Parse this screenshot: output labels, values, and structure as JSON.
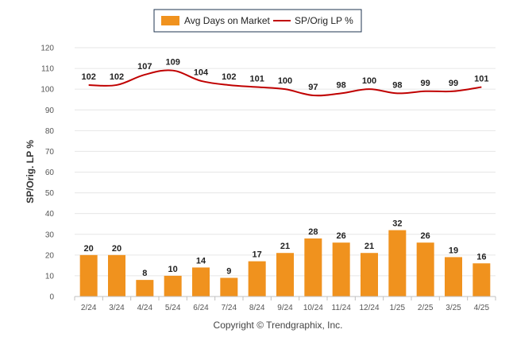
{
  "chart_data": {
    "type": "bar",
    "categories": [
      "2/24",
      "3/24",
      "4/24",
      "5/24",
      "6/24",
      "7/24",
      "8/24",
      "9/24",
      "10/24",
      "11/24",
      "12/24",
      "1/25",
      "2/25",
      "3/25",
      "4/25"
    ],
    "series": [
      {
        "name": "Avg Days on Market",
        "type": "bar",
        "color": "#f0921e",
        "values": [
          20,
          20,
          8,
          10,
          14,
          9,
          17,
          21,
          28,
          26,
          21,
          32,
          26,
          19,
          16
        ]
      },
      {
        "name": "SP/Orig LP %",
        "type": "line",
        "color": "#c00000",
        "values": [
          102,
          102,
          107,
          109,
          104,
          102,
          101,
          100,
          97,
          98,
          100,
          98,
          99,
          99,
          101
        ]
      }
    ],
    "ylabel": "SP/Orig. LP %",
    "xlabel": "",
    "ylim": [
      0,
      120
    ],
    "yticks": [
      0,
      10,
      20,
      30,
      40,
      50,
      60,
      70,
      80,
      90,
      100,
      110,
      120
    ],
    "grid": true,
    "legend_position": "top-center",
    "credit": "Copyright © Trendgraphix, Inc."
  }
}
